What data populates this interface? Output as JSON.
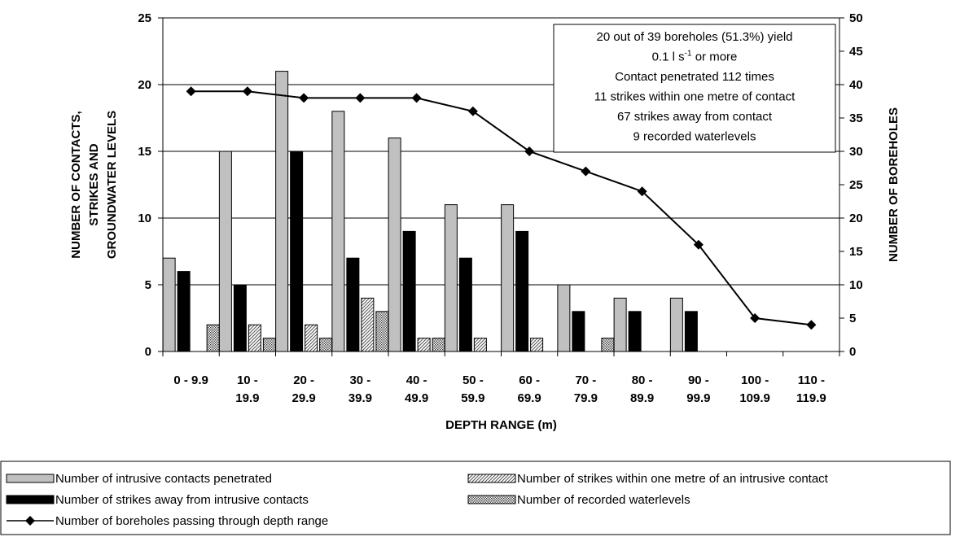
{
  "chart_data": {
    "type": "bar",
    "categories": [
      [
        "0 - 9.9"
      ],
      [
        "10 -",
        "19.9"
      ],
      [
        "20 -",
        "29.9"
      ],
      [
        "30 -",
        "39.9"
      ],
      [
        "40 -",
        "49.9"
      ],
      [
        "50 -",
        "59.9"
      ],
      [
        "60 -",
        "69.9"
      ],
      [
        "70 -",
        "79.9"
      ],
      [
        "80 -",
        "89.9"
      ],
      [
        "90 -",
        "99.9"
      ],
      [
        "100 -",
        "109.9"
      ],
      [
        "110 -",
        "119.9"
      ]
    ],
    "xlabel": "DEPTH RANGE (m)",
    "ylabel": [
      "NUMBER OF CONTACTS,",
      "STRIKES AND",
      "GROUNDWATER LEVELS"
    ],
    "y2label": "NUMBER OF BOREHOLES",
    "ylim": [
      0,
      25
    ],
    "y2lim": [
      0,
      50
    ],
    "yticks": [
      "0",
      "5",
      "10",
      "15",
      "20",
      "25"
    ],
    "y2ticks": [
      "0",
      "5",
      "10",
      "15",
      "20",
      "25",
      "30",
      "35",
      "40",
      "45",
      "50"
    ],
    "grid": "horizontal",
    "series": [
      {
        "name": "Number of  intrusive contacts penetrated",
        "kind": "bar",
        "axis": "left",
        "fill": "#c0c0c0",
        "pattern": "solid",
        "values": [
          7,
          15,
          21,
          18,
          16,
          11,
          11,
          5,
          4,
          4,
          0,
          0
        ]
      },
      {
        "name": "Number of strikes away  from  intrusive contacts",
        "kind": "bar",
        "axis": "left",
        "fill": "#000000",
        "pattern": "solid",
        "values": [
          6,
          5,
          15,
          7,
          9,
          7,
          9,
          3,
          3,
          3,
          0,
          0
        ]
      },
      {
        "name": "Number of  strikes  within one  metre of an intrusive contact",
        "kind": "bar",
        "axis": "left",
        "fill": "#ffffff",
        "pattern": "diagonal",
        "values": [
          0,
          2,
          2,
          4,
          1,
          1,
          1,
          0,
          0,
          0,
          0,
          0
        ]
      },
      {
        "name": "Number of recorded waterlevels",
        "kind": "bar",
        "axis": "left",
        "fill": "#ffffff",
        "pattern": "dots",
        "values": [
          2,
          1,
          1,
          3,
          1,
          0,
          0,
          1,
          0,
          0,
          0,
          0
        ]
      },
      {
        "name": "Number of boreholes passing through depth range",
        "kind": "line",
        "axis": "right",
        "color": "#000000",
        "marker": "diamond",
        "values": [
          39,
          39,
          38,
          38,
          38,
          36,
          30,
          27,
          24,
          16,
          5,
          4
        ]
      }
    ],
    "annotation": [
      {
        "text": "20 out of 39 boreholes (51.3%) yield"
      },
      {
        "text": "0.1 l s",
        "sup": "-1",
        "after": "  or more"
      },
      {
        "text": "Contact penetrated  112 times"
      },
      {
        "text": "11 strikes within one metre of contact"
      },
      {
        "text": "67 strikes away from contact"
      },
      {
        "text": "9 recorded waterlevels"
      }
    ],
    "legend": {
      "placement": "bottom",
      "order": [
        0,
        2,
        1,
        3,
        4
      ]
    }
  }
}
